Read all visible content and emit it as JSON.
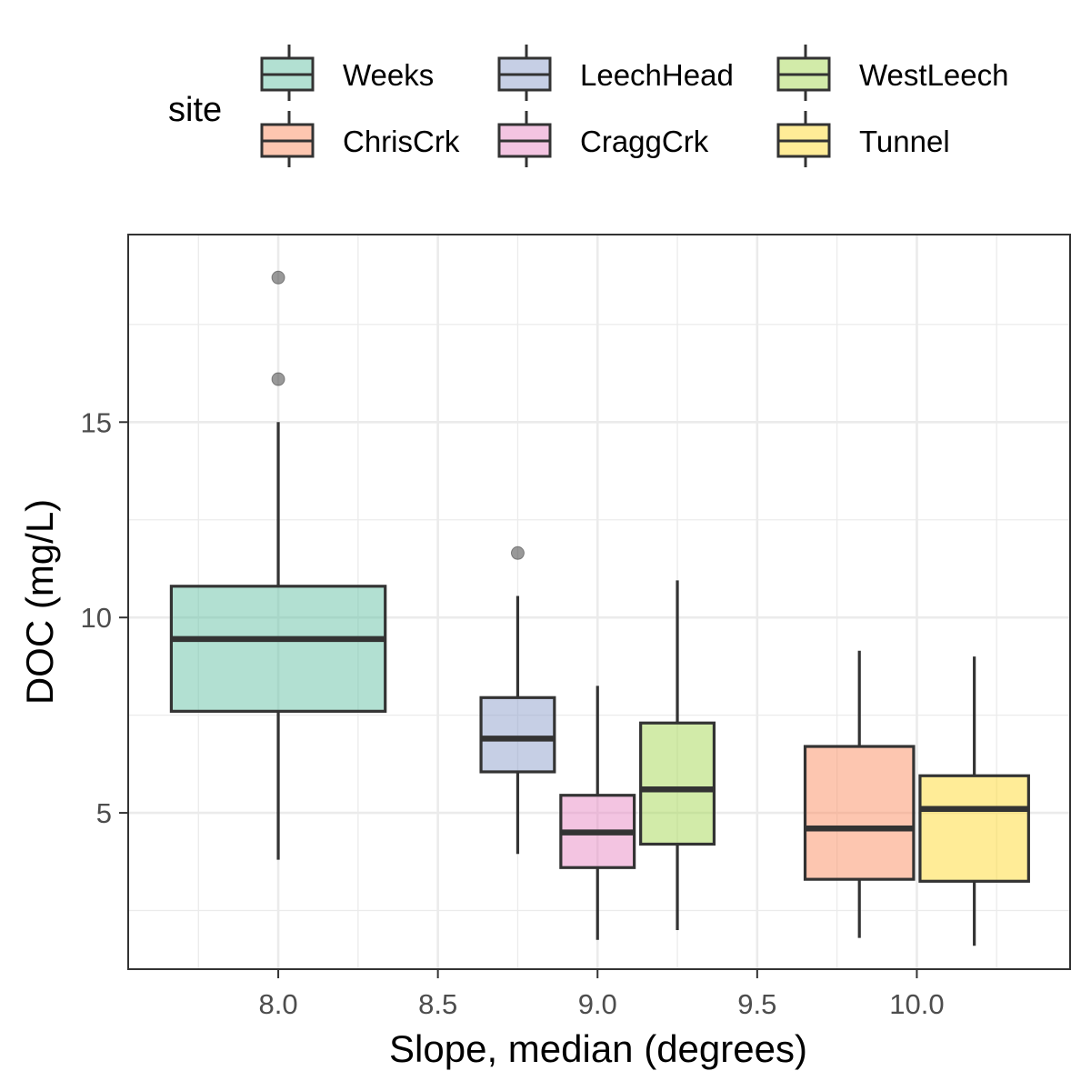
{
  "chart_data": {
    "type": "boxplot",
    "xlabel": "Slope, median (degrees)",
    "ylabel": "DOC (mg/L)",
    "xlim": [
      7.53,
      10.48
    ],
    "ylim": [
      1.0,
      19.8
    ],
    "x_ticks": [
      8.0,
      8.5,
      9.0,
      9.5,
      10.0
    ],
    "x_tick_labels": [
      "8.0",
      "8.5",
      "9.0",
      "9.5",
      "10.0"
    ],
    "x_minor_ticks": [
      7.75,
      8.25,
      8.75,
      9.25,
      9.75,
      10.25
    ],
    "y_ticks": [
      5,
      10,
      15
    ],
    "y_tick_labels": [
      "5",
      "10",
      "15"
    ],
    "y_minor_ticks": [
      2.5,
      7.5,
      12.5,
      17.5
    ],
    "grid": true,
    "legend": {
      "title": "site",
      "position": "top",
      "entries": [
        {
          "name": "Weeks",
          "color": "#66C2A5"
        },
        {
          "name": "LeechHead",
          "color": "#8DA0CB"
        },
        {
          "name": "WestLeech",
          "color": "#A6D854"
        },
        {
          "name": "ChrisCrk",
          "color": "#FC8D62"
        },
        {
          "name": "CraggCrk",
          "color": "#E78AC3"
        },
        {
          "name": "Tunnel",
          "color": "#FFD92F"
        }
      ]
    },
    "series": [
      {
        "name": "Weeks",
        "color": "#66C2A5",
        "x": 8.0,
        "box_width": 0.67,
        "whisker_low": 3.8,
        "q1": 7.6,
        "median": 9.45,
        "q3": 10.8,
        "whisker_high": 15.0,
        "outliers": [
          16.1,
          18.7
        ]
      },
      {
        "name": "LeechHead",
        "color": "#8DA0CB",
        "x": 8.75,
        "box_width": 0.23,
        "whisker_low": 3.95,
        "q1": 6.05,
        "median": 6.9,
        "q3": 7.95,
        "whisker_high": 10.55,
        "outliers": [
          11.65
        ]
      },
      {
        "name": "CraggCrk",
        "color": "#E78AC3",
        "x": 9.0,
        "box_width": 0.23,
        "whisker_low": 1.75,
        "q1": 3.6,
        "median": 4.5,
        "q3": 5.45,
        "whisker_high": 8.25,
        "outliers": []
      },
      {
        "name": "WestLeech",
        "color": "#A6D854",
        "x": 9.25,
        "box_width": 0.23,
        "whisker_low": 2.0,
        "q1": 4.2,
        "median": 5.6,
        "q3": 7.3,
        "whisker_high": 10.95,
        "outliers": []
      },
      {
        "name": "ChrisCrk",
        "color": "#FC8D62",
        "x": 9.82,
        "box_width": 0.34,
        "whisker_low": 1.8,
        "q1": 3.3,
        "median": 4.6,
        "q3": 6.7,
        "whisker_high": 9.15,
        "outliers": []
      },
      {
        "name": "Tunnel",
        "color": "#FFD92F",
        "x": 10.18,
        "box_width": 0.34,
        "whisker_low": 1.6,
        "q1": 3.25,
        "median": 5.1,
        "q3": 5.95,
        "whisker_high": 9.0,
        "outliers": []
      }
    ]
  }
}
